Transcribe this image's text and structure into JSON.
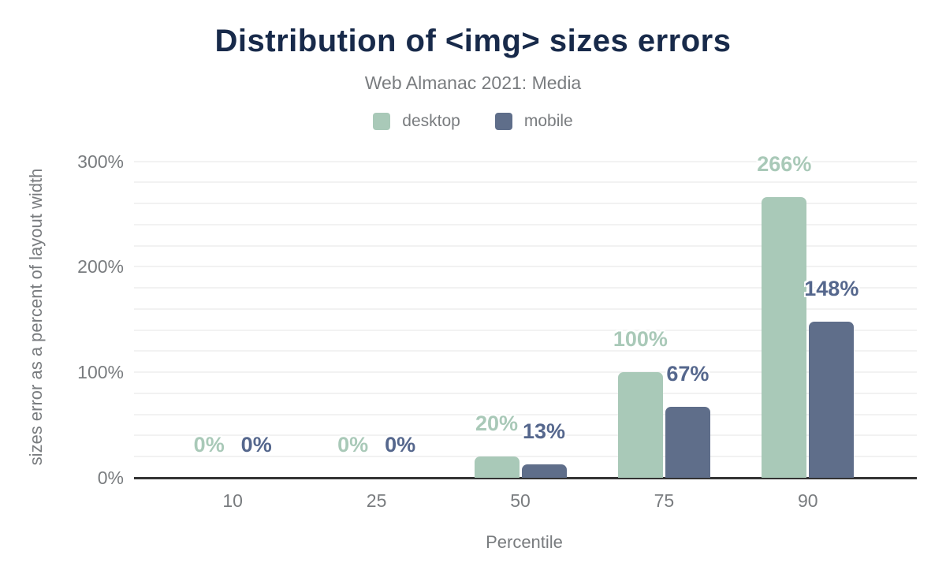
{
  "chart_data": {
    "type": "bar",
    "title": "Distribution of <img> sizes errors",
    "subtitle": "Web Almanac 2021: Media",
    "xlabel": "Percentile",
    "ylabel": "sizes error as a percent of layout width",
    "categories": [
      "10",
      "25",
      "50",
      "75",
      "90"
    ],
    "series": [
      {
        "name": "desktop",
        "color": "#a9c9b8",
        "label_color": "#a9c9b8",
        "values": [
          0,
          0,
          20,
          100,
          266
        ],
        "labels": [
          "0%",
          "0%",
          "20%",
          "100%",
          "266%"
        ]
      },
      {
        "name": "mobile",
        "color": "#5f6e8a",
        "label_color": "#55678d",
        "values": [
          0,
          0,
          13,
          67,
          148
        ],
        "labels": [
          "0%",
          "0%",
          "13%",
          "67%",
          "148%"
        ]
      }
    ],
    "ylim": [
      0,
      300
    ],
    "yticks": [
      0,
      100,
      200,
      300
    ],
    "ytick_labels": [
      "0%",
      "100%",
      "200%",
      "300%"
    ],
    "grid_interval_pct": 20,
    "grid_on": true,
    "legend_position": "top"
  },
  "colors": {
    "title": "#182a4a",
    "muted_text": "#797c7f",
    "gridline": "#f2f2f2",
    "axis_line": "#333333",
    "background": "#ffffff"
  }
}
